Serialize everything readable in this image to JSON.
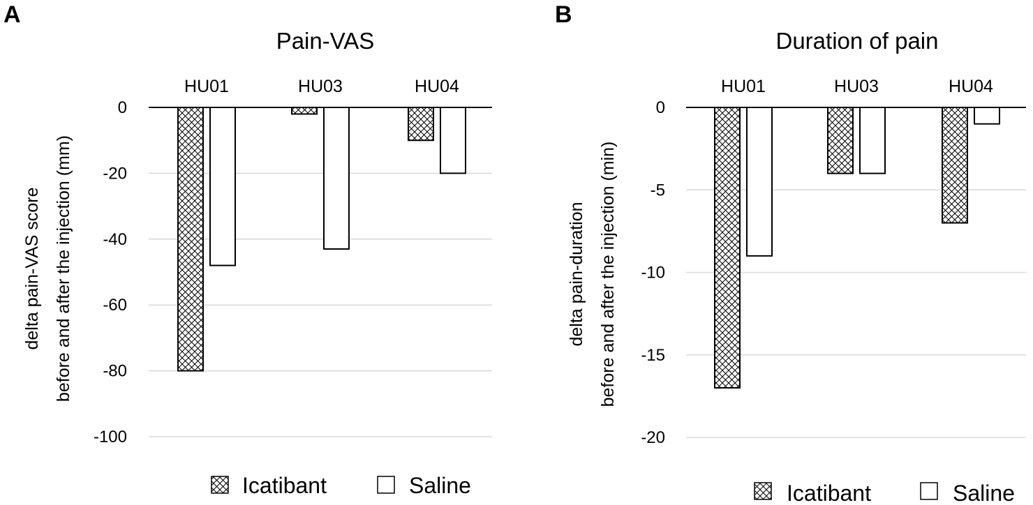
{
  "chart_data": [
    {
      "panel_label": "A",
      "type": "bar",
      "title": "Pain-VAS",
      "categories": [
        "HU01",
        "HU03",
        "HU04"
      ],
      "ylabel_lines": [
        "delta  pain-VAS score",
        "before and after the injection (mm)"
      ],
      "ylim": [
        -100,
        0
      ],
      "yticks": [
        0,
        -20,
        -40,
        -60,
        -80,
        -100
      ],
      "grid": true,
      "category_labels_position": "top",
      "legend_position": "bottom",
      "series": [
        {
          "name": "Icatibant",
          "values": [
            -80,
            -2,
            -10
          ]
        },
        {
          "name": "Saline",
          "values": [
            -48,
            -43,
            -20
          ]
        }
      ]
    },
    {
      "panel_label": "B",
      "type": "bar",
      "title": "Duration of pain",
      "categories": [
        "HU01",
        "HU03",
        "HU04"
      ],
      "ylabel_lines": [
        "delta pain-duration",
        "before and after the injection (min)"
      ],
      "ylim": [
        -20,
        0
      ],
      "yticks": [
        0,
        -5,
        -10,
        -15,
        -20
      ],
      "grid": true,
      "category_labels_position": "top",
      "legend_position": "bottom",
      "series": [
        {
          "name": "Icatibant",
          "values": [
            -17,
            -4,
            -7
          ]
        },
        {
          "name": "Saline",
          "values": [
            -9,
            -4,
            -1
          ]
        }
      ]
    }
  ]
}
